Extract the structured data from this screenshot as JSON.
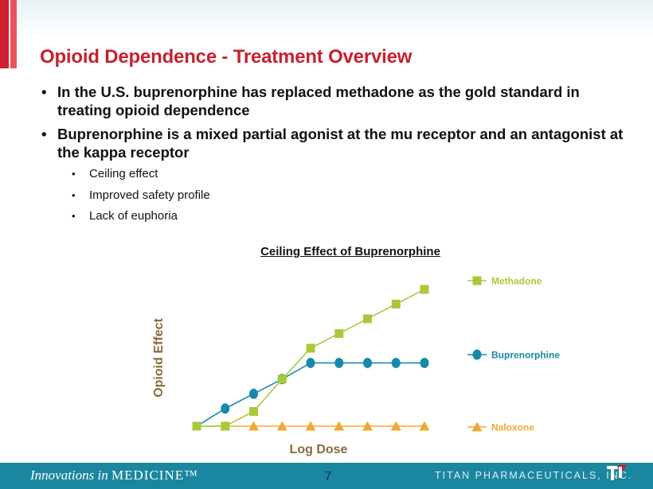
{
  "slide": {
    "title": "Opioid Dependence - Treatment Overview",
    "bullets": [
      "In the U.S. buprenorphine has replaced methadone as the gold standard in treating opioid dependence",
      "Buprenorphine is a mixed partial agonist at the mu receptor and an antagonist at the kappa receptor"
    ],
    "sub_bullets": [
      "Ceiling effect",
      "Improved safety profile",
      "Lack of euphoria"
    ],
    "bullet_glyph": "•",
    "page_number": "7"
  },
  "footer": {
    "left_italic": "Innovations in ",
    "left_caps": "MEDICINE™",
    "right": "TITAN PHARMACEUTICALS, INC."
  },
  "colors": {
    "title_red": "#c8202f",
    "methadone": "#a8c93a",
    "buprenorphine": "#168aa8",
    "naloxone": "#f0a830",
    "axis_label": "#8a6a3a",
    "footer_bg": "#1b86a0"
  },
  "chart_data": {
    "type": "line",
    "title": "Ceiling Effect of Buprenorphine",
    "xlabel": "Log Dose",
    "ylabel": "Opioid Effect",
    "x": [
      1,
      2,
      3,
      4,
      5,
      6,
      7,
      8,
      9
    ],
    "xlim": [
      1,
      9
    ],
    "ylim": [
      0,
      10
    ],
    "grid": false,
    "legend": "right",
    "series": [
      {
        "name": "Methadone",
        "marker": "square",
        "color": "#a8c93a",
        "values": [
          0,
          0,
          1,
          3.2,
          5.3,
          6.3,
          7.3,
          8.3,
          9.3
        ]
      },
      {
        "name": "Buprenorphine",
        "marker": "circle",
        "color": "#168aa8",
        "values": [
          0,
          1.2,
          2.2,
          3.2,
          4.3,
          4.3,
          4.3,
          4.3,
          4.3
        ]
      },
      {
        "name": "Naloxone",
        "marker": "triangle",
        "color": "#f0a830",
        "values": [
          0,
          0,
          0,
          0,
          0,
          0,
          0,
          0,
          0
        ]
      }
    ]
  }
}
